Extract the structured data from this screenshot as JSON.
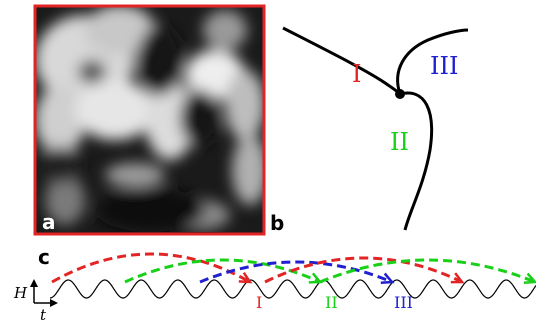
{
  "panel_a": {
    "label": "a",
    "frame_color": "#e32424"
  },
  "panel_b": {
    "label": "b",
    "regions": [
      {
        "label": "I",
        "color": "#e32424"
      },
      {
        "label": "III",
        "color": "#2020d0"
      },
      {
        "label": "II",
        "color": "#19d019"
      }
    ]
  },
  "panel_c": {
    "label": "c",
    "axis_vertical": "H",
    "axis_horizontal": "t",
    "markers": [
      {
        "label": "I",
        "color": "#e32424"
      },
      {
        "label": "II",
        "color": "#19d019"
      },
      {
        "label": "III",
        "color": "#2020d0"
      }
    ],
    "arc_colors": [
      "#e32424",
      "#19d019",
      "#2020d0"
    ]
  }
}
